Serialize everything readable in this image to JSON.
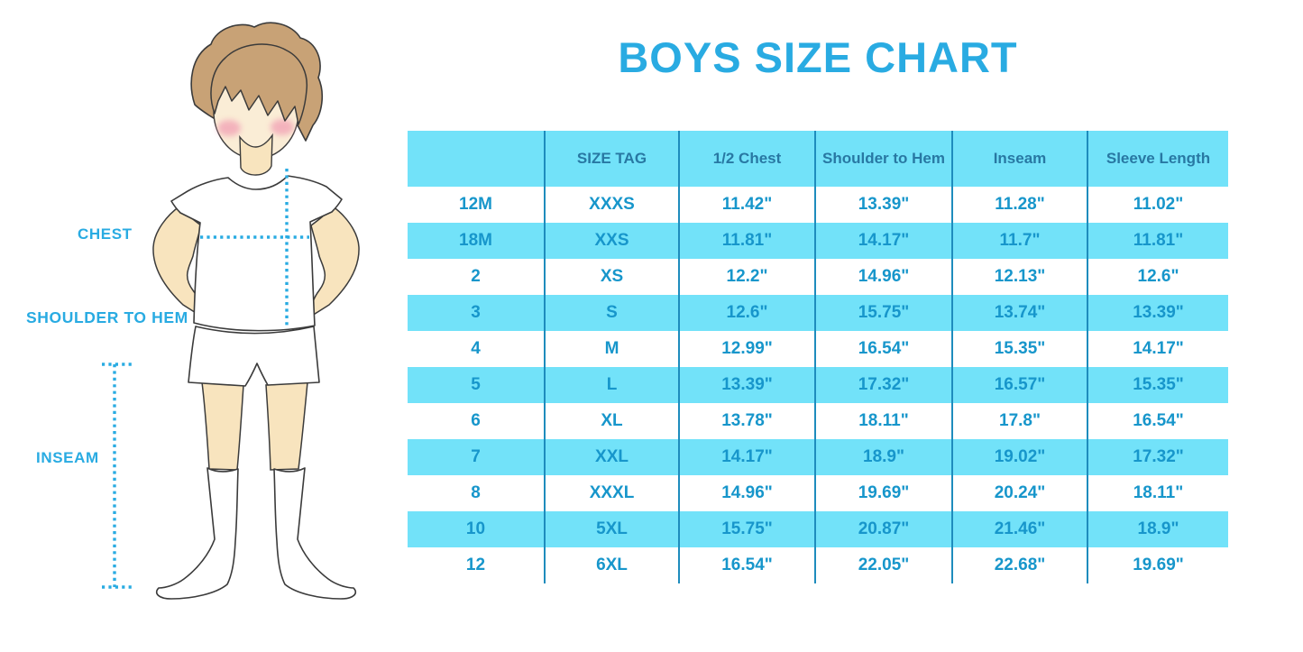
{
  "chart_data": {
    "type": "table",
    "title": "BOYS SIZE CHART",
    "columns": [
      "",
      "SIZE TAG",
      "1/2 Chest",
      "Shoulder to Hem",
      "Inseam",
      "Sleeve Length"
    ],
    "rows": [
      [
        "12M",
        "XXXS",
        "11.42\"",
        "13.39\"",
        "11.28\"",
        "11.02\""
      ],
      [
        "18M",
        "XXS",
        "11.81\"",
        "14.17\"",
        "11.7\"",
        "11.81\""
      ],
      [
        "2",
        "XS",
        "12.2\"",
        "14.96\"",
        "12.13\"",
        "12.6\""
      ],
      [
        "3",
        "S",
        "12.6\"",
        "15.75\"",
        "13.74\"",
        "13.39\""
      ],
      [
        "4",
        "M",
        "12.99\"",
        "16.54\"",
        "15.35\"",
        "14.17\""
      ],
      [
        "5",
        "L",
        "13.39\"",
        "17.32\"",
        "16.57\"",
        "15.35\""
      ],
      [
        "6",
        "XL",
        "13.78\"",
        "18.11\"",
        "17.8\"",
        "16.54\""
      ],
      [
        "7",
        "XXL",
        "14.17\"",
        "18.9\"",
        "19.02\"",
        "17.32\""
      ],
      [
        "8",
        "XXXL",
        "14.96\"",
        "19.69\"",
        "20.24\"",
        "18.11\""
      ],
      [
        "10",
        "5XL",
        "15.75\"",
        "20.87\"",
        "21.46\"",
        "18.9\""
      ],
      [
        "12",
        "6XL",
        "16.54\"",
        "22.05\"",
        "22.68\"",
        "19.69\""
      ]
    ],
    "grid": "vertical column dividers only",
    "row_striping": "alternating white and light cyan, cyan header",
    "legend_position": "none"
  },
  "figure": {
    "labels": {
      "chest": "CHEST",
      "shoulder_to_hem": "SHOULDER TO HEM",
      "inseam": "INSEAM"
    }
  },
  "colors": {
    "accent_blue": "#29ABE2",
    "table_header_bg": "#72E2F9",
    "table_row_bg": "#FFFFFF",
    "table_row_alt_bg": "#72E2F9",
    "table_header_text": "#2878A3",
    "table_cell_text": "#1796CB",
    "table_divider": "#1E8CBD",
    "hair": "#C8A276",
    "skin": "#F8E4BE",
    "face": "#FAEDD6",
    "blush": "#F2A4B6",
    "outline": "#3B3B3B"
  }
}
